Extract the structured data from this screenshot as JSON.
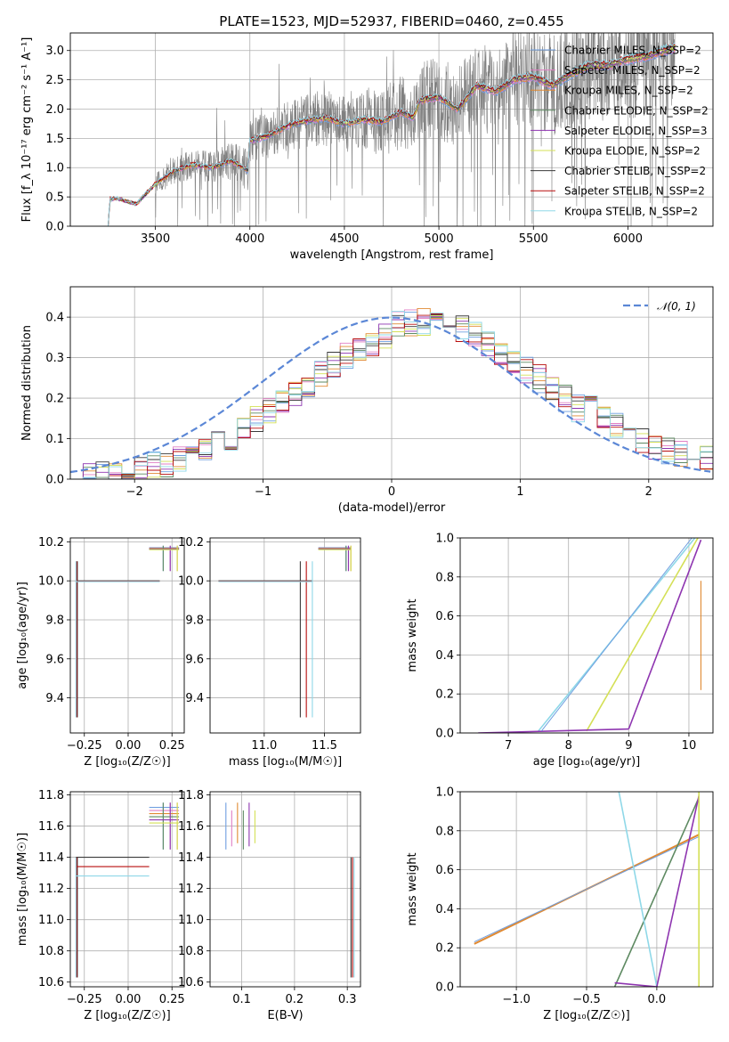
{
  "figure": {
    "title": "PLATE=1523, MJD=52937, FIBERID=0460, z=0.455",
    "series_colors": [
      "#6f9fe0",
      "#e07fc4",
      "#e08a33",
      "#5e8a62",
      "#8e35b0",
      "#d4e056",
      "#3a3a3a",
      "#b80d0d",
      "#8fd8e8"
    ]
  },
  "chart_data": [
    {
      "id": "spectrum",
      "type": "line",
      "title": "PLATE=1523, MJD=52937, FIBERID=0460, z=0.455",
      "xlabel": "wavelength [Angstrom, rest frame]",
      "ylabel": "Flux [f_λ 10⁻¹⁷ erg cm⁻² s⁻¹ A⁻¹]",
      "xlim": [
        3050,
        6450
      ],
      "ylim": [
        0,
        3.3
      ],
      "xticks": [
        3500,
        4000,
        4500,
        5000,
        5500,
        6000
      ],
      "yticks": [
        0.0,
        0.5,
        1.0,
        1.5,
        2.0,
        2.5,
        3.0
      ],
      "legend_position": "top-right",
      "legend": [
        "Chabrier MILES, N_SSP=2",
        "Salpeter MILES, N_SSP=2",
        "Kroupa MILES, N_SSP=2",
        "Chabrier ELODIE, N_SSP=2",
        "Salpeter ELODIE, N_SSP=3",
        "Kroupa ELODIE, N_SSP=2",
        "Chabrier STELIB, N_SSP=2",
        "Salpeter STELIB, N_SSP=2",
        "Kroupa STELIB, N_SSP=2"
      ],
      "model_x": [
        3250,
        3260,
        3300,
        3400,
        3500,
        3600,
        3700,
        3800,
        3900,
        3990,
        4000,
        4100,
        4200,
        4300,
        4400,
        4500,
        4600,
        4700,
        4800,
        4862,
        4900,
        5000,
        5100,
        5200,
        5300,
        5400,
        5500,
        5600,
        5700,
        5800,
        5900,
        6000,
        6100,
        6200,
        6250
      ],
      "model_y": [
        0.0,
        0.47,
        0.47,
        0.38,
        0.72,
        0.95,
        1.05,
        1.0,
        1.12,
        0.95,
        1.45,
        1.55,
        1.72,
        1.8,
        1.85,
        1.75,
        1.82,
        1.78,
        1.95,
        1.85,
        2.15,
        2.2,
        2.0,
        2.4,
        2.3,
        2.5,
        2.55,
        2.4,
        2.6,
        2.75,
        2.75,
        2.85,
        2.9,
        3.0,
        3.05
      ],
      "data_range": [
        3500,
        6250
      ]
    },
    {
      "id": "residuals",
      "type": "histogram",
      "xlabel": "(data-model)/error",
      "ylabel": "Normed distribution",
      "xlim": [
        -2.5,
        2.5
      ],
      "ylim": [
        0,
        0.475
      ],
      "xticks": [
        -2,
        -1,
        0,
        1,
        2
      ],
      "yticks": [
        0.0,
        0.1,
        0.2,
        0.3,
        0.4
      ],
      "legend_position": "top-right",
      "legend": [
        "𝒩(0, 1)"
      ]
    },
    {
      "id": "age-vs-Z",
      "type": "scatter",
      "xlabel": "Z [log₁₀(Z/Z☉)]",
      "ylabel": "age  [log₁₀(age/yr)]",
      "xlim": [
        -0.33,
        0.32
      ],
      "ylim": [
        9.22,
        10.22
      ],
      "xticks": [
        -0.25,
        0.0,
        0.25
      ],
      "yticks": [
        9.4,
        9.6,
        9.8,
        10.0,
        10.2
      ]
    },
    {
      "id": "age-vs-mass",
      "type": "scatter",
      "xlabel": "mass [log₁₀(M/M☉)]",
      "xlim": [
        10.55,
        11.8
      ],
      "ylim": [
        9.22,
        10.22
      ],
      "xticks": [
        11.0,
        11.5
      ],
      "yticks": [
        9.4,
        9.6,
        9.8,
        10.0,
        10.2
      ]
    },
    {
      "id": "massweight-vs-age",
      "type": "line",
      "xlabel": "age  [log₁₀(age/yr)]",
      "ylabel": "mass weight",
      "xlim": [
        6.2,
        10.4
      ],
      "ylim": [
        0,
        1
      ],
      "xticks": [
        7,
        8,
        9,
        10
      ],
      "yticks": [
        0.0,
        0.2,
        0.4,
        0.6,
        0.8,
        1.0
      ]
    },
    {
      "id": "mass-vs-Z",
      "type": "scatter",
      "xlabel": "Z [log₁₀(Z/Z☉)]",
      "ylabel": "mass [log₁₀(M/M☉)]",
      "xlim": [
        -0.33,
        0.32
      ],
      "ylim": [
        10.57,
        11.82
      ],
      "xticks": [
        -0.25,
        0.0,
        0.25
      ],
      "yticks": [
        10.6,
        10.8,
        11.0,
        11.2,
        11.4,
        11.6,
        11.8
      ]
    },
    {
      "id": "mass-vs-ebv",
      "type": "scatter",
      "xlabel": "E(B-V)",
      "xlim": [
        0.04,
        0.325
      ],
      "ylim": [
        10.57,
        11.82
      ],
      "xticks": [
        0.1,
        0.2,
        0.3
      ],
      "yticks": [
        10.6,
        10.8,
        11.0,
        11.2,
        11.4,
        11.6,
        11.8
      ]
    },
    {
      "id": "massweight-vs-Z",
      "type": "line",
      "xlabel": "Z [log₁₀(Z/Z☉)]",
      "ylabel": "mass weight",
      "xlim": [
        -1.4,
        0.4
      ],
      "ylim": [
        0,
        1
      ],
      "xticks": [
        -1.0,
        -0.5,
        0.0
      ],
      "yticks": [
        0.0,
        0.2,
        0.4,
        0.6,
        0.8,
        1.0
      ]
    }
  ]
}
